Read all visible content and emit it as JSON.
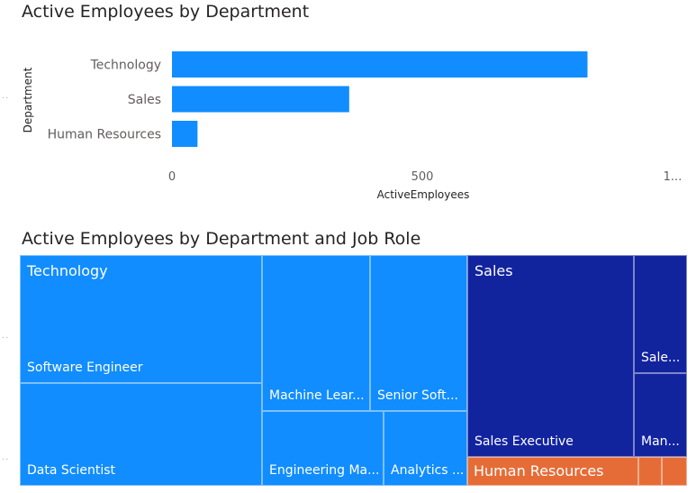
{
  "chart_data": [
    {
      "type": "bar",
      "orientation": "horizontal",
      "title": "Active Employees by Department",
      "xlabel": "ActiveEmployees",
      "ylabel": "Department",
      "categories": [
        "Technology",
        "Sales",
        "Human Resources"
      ],
      "values": [
        830,
        354,
        51
      ],
      "xlim": [
        0,
        1000
      ],
      "x_ticks": [
        "0",
        "500",
        "1..."
      ],
      "grid": false,
      "color": "#118DFF"
    },
    {
      "type": "treemap",
      "title": "Active Employees by Department and Job Role",
      "groups": [
        {
          "name": "Technology",
          "color": "#118DFF",
          "items": [
            {
              "label": "Software Engineer"
            },
            {
              "label": "Data Scientist"
            },
            {
              "label": "Machine Lear..."
            },
            {
              "label": "Senior Soft..."
            },
            {
              "label": "Engineering Ma..."
            },
            {
              "label": "Analytics ..."
            }
          ]
        },
        {
          "name": "Sales",
          "color": "#12239E",
          "items": [
            {
              "label": "Sales Executive"
            },
            {
              "label": "Sale..."
            },
            {
              "label": "Man..."
            }
          ]
        },
        {
          "name": "Human Resources",
          "color": "#E66C37",
          "items": [
            {
              "label": ""
            },
            {
              "label": ""
            },
            {
              "label": ""
            }
          ]
        }
      ]
    }
  ]
}
